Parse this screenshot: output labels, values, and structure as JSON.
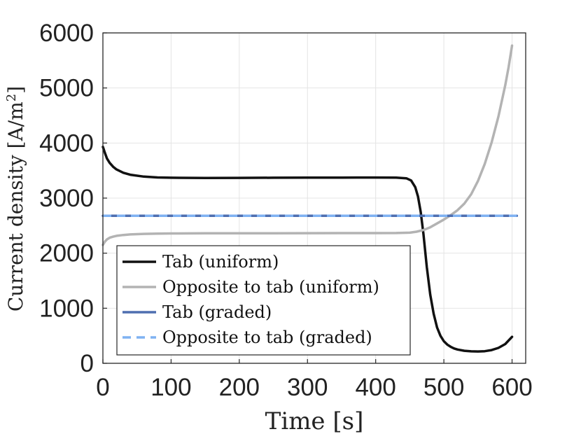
{
  "chart_data": {
    "type": "line",
    "xlabel": "Time [s]",
    "ylabel": "Current density [A/m²]",
    "ylabel_main": "Current density [A/m",
    "ylabel_sup": "2",
    "ylabel_end": "]",
    "xlim": [
      0,
      620
    ],
    "ylim": [
      0,
      6000
    ],
    "xticks": [
      0,
      100,
      200,
      300,
      400,
      500,
      600
    ],
    "yticks": [
      0,
      1000,
      2000,
      3000,
      4000,
      5000,
      6000
    ],
    "xtick_labels": [
      "0",
      "100",
      "200",
      "300",
      "400",
      "500",
      "600"
    ],
    "ytick_labels": [
      "0",
      "1000",
      "2000",
      "3000",
      "4000",
      "5000",
      "6000"
    ],
    "grid": true,
    "legend_position": "bottom-left",
    "series": [
      {
        "name": "Tab (uniform)",
        "color": "#111111",
        "style": "solid",
        "x": [
          0,
          3,
          6,
          10,
          15,
          20,
          30,
          40,
          60,
          80,
          100,
          150,
          200,
          250,
          300,
          350,
          400,
          430,
          445,
          452,
          458,
          462,
          466,
          470,
          475,
          480,
          485,
          490,
          495,
          500,
          505,
          510,
          515,
          520,
          530,
          540,
          550,
          560,
          570,
          580,
          590,
          600
        ],
        "y": [
          3930,
          3820,
          3720,
          3640,
          3570,
          3520,
          3460,
          3425,
          3390,
          3375,
          3370,
          3365,
          3368,
          3370,
          3372,
          3373,
          3374,
          3372,
          3360,
          3320,
          3200,
          3030,
          2750,
          2350,
          1750,
          1250,
          900,
          650,
          500,
          400,
          340,
          300,
          270,
          250,
          228,
          218,
          215,
          220,
          240,
          280,
          350,
          480
        ]
      },
      {
        "name": "Opposite to tab (uniform)",
        "color": "#b3b3b3",
        "style": "solid",
        "x": [
          0,
          3,
          6,
          10,
          15,
          20,
          30,
          40,
          60,
          80,
          100,
          150,
          200,
          250,
          300,
          350,
          400,
          430,
          450,
          460,
          470,
          480,
          490,
          500,
          510,
          520,
          530,
          540,
          550,
          560,
          570,
          580,
          590,
          595,
          600
        ],
        "y": [
          2150,
          2210,
          2250,
          2280,
          2300,
          2315,
          2330,
          2340,
          2350,
          2355,
          2358,
          2360,
          2361,
          2362,
          2363,
          2364,
          2365,
          2366,
          2372,
          2390,
          2420,
          2470,
          2540,
          2610,
          2690,
          2780,
          2900,
          3070,
          3310,
          3620,
          4010,
          4480,
          5050,
          5380,
          5770
        ]
      },
      {
        "name": "Tab (graded)",
        "color": "#4f6fb0",
        "style": "solid",
        "x": [
          0,
          100,
          200,
          300,
          400,
          500,
          600,
          607
        ],
        "y": [
          2680,
          2680,
          2680,
          2680,
          2680,
          2680,
          2680,
          2680
        ]
      },
      {
        "name": "Opposite to tab (graded)",
        "color": "#7fb2f2",
        "style": "dashed",
        "x": [
          0,
          100,
          200,
          300,
          400,
          500,
          600,
          607
        ],
        "y": [
          2680,
          2680,
          2680,
          2680,
          2680,
          2680,
          2680,
          2680
        ]
      }
    ]
  }
}
